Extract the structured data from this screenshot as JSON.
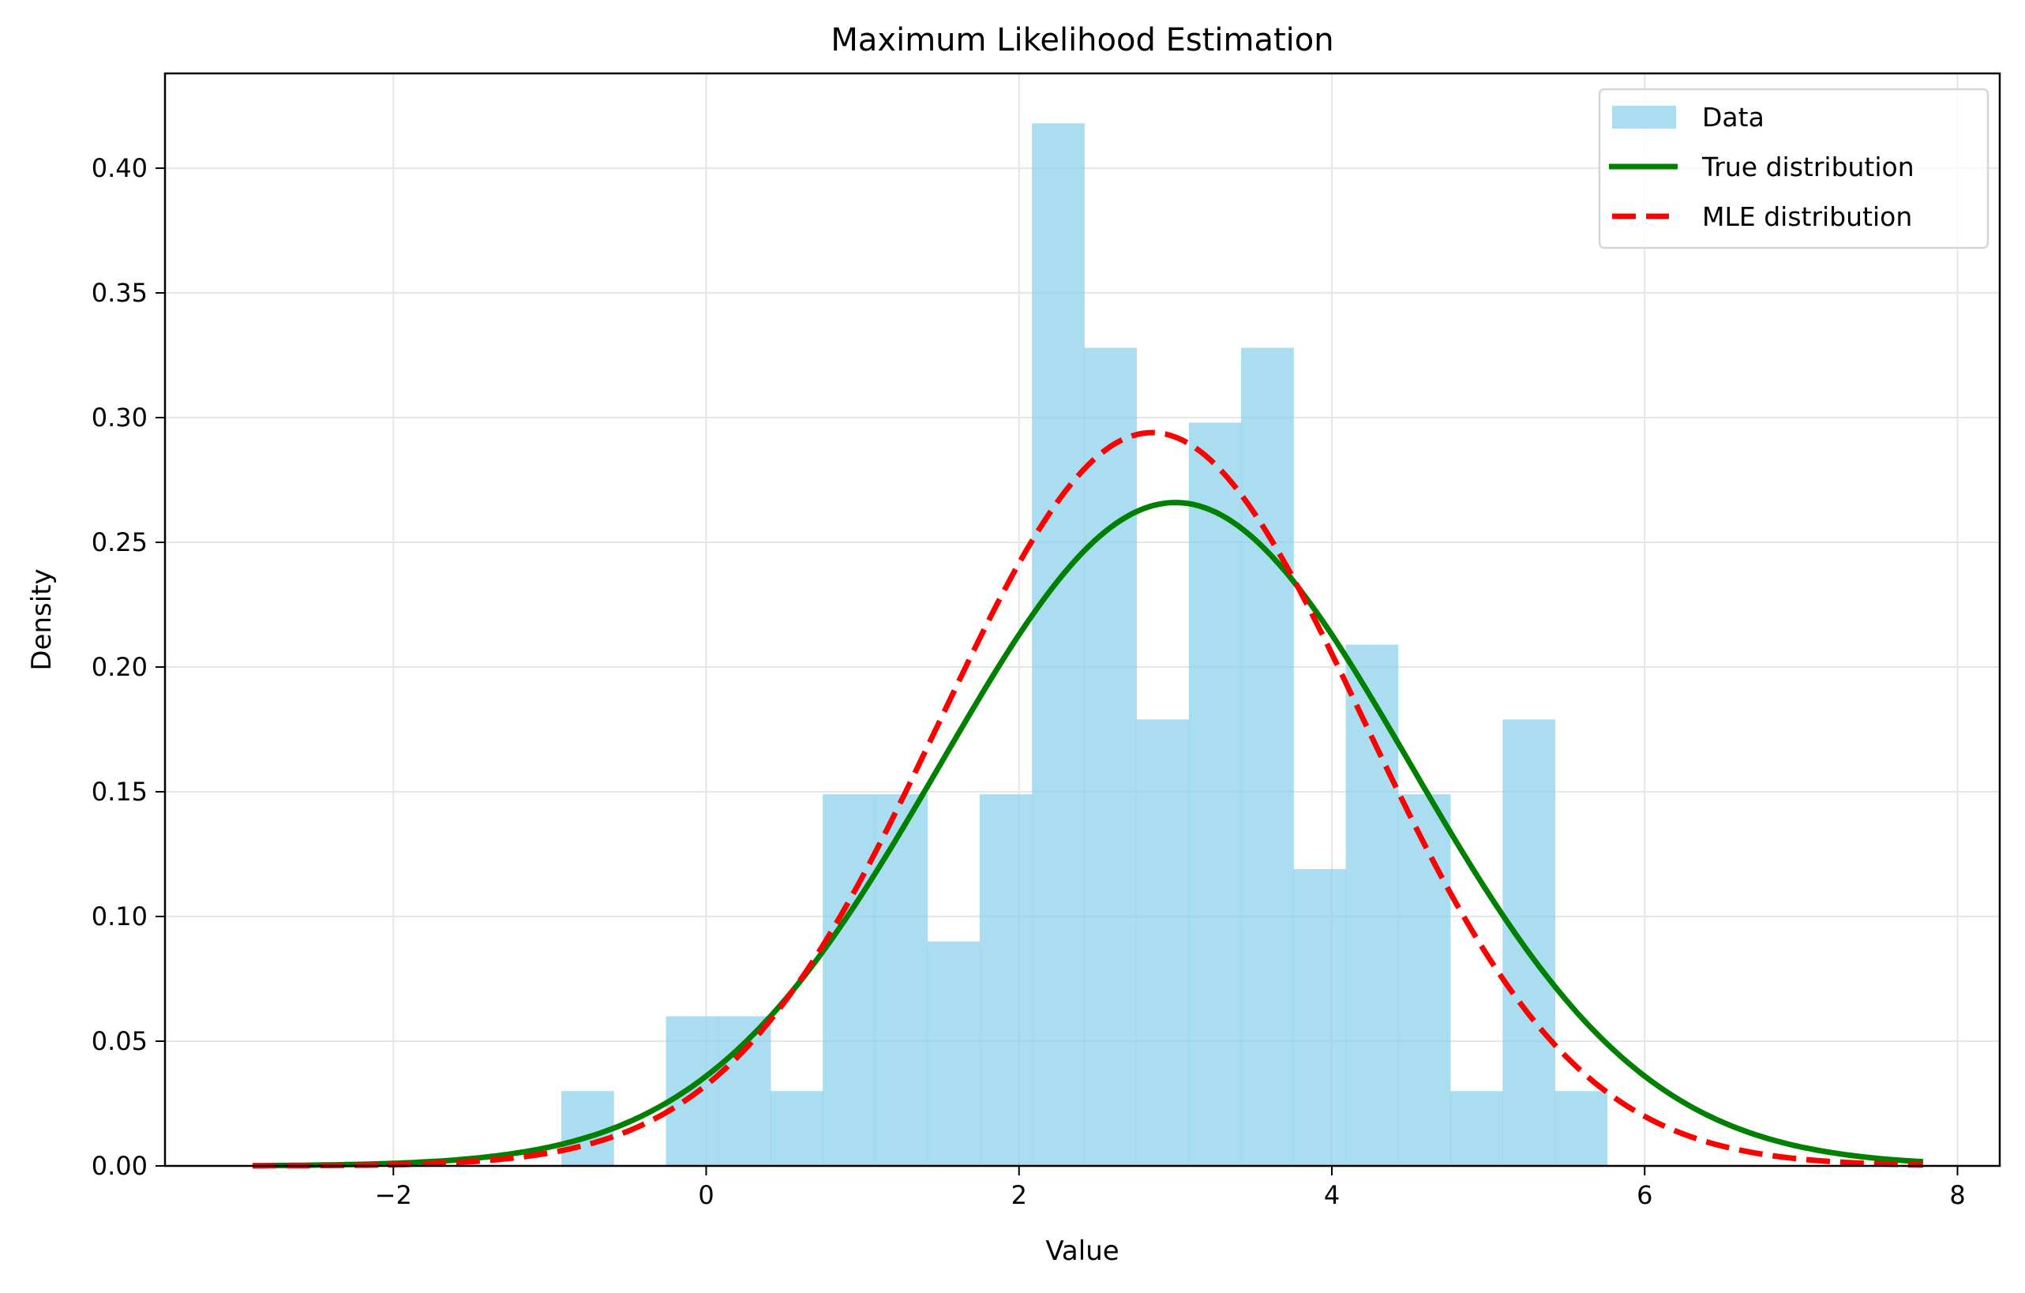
{
  "chart_data": {
    "type": "histogram+line",
    "title": "Maximum Likelihood Estimation",
    "xlabel": "Value",
    "ylabel": "Density",
    "xlim": [
      -3.46,
      8.27
    ],
    "ylim": [
      0,
      0.438
    ],
    "xticks": [
      -2,
      0,
      2,
      4,
      6,
      8
    ],
    "xtick_labels": [
      "−2",
      "0",
      "2",
      "4",
      "6",
      "8"
    ],
    "yticks": [
      0,
      0.05,
      0.1,
      0.15,
      0.2,
      0.25,
      0.3,
      0.35,
      0.4
    ],
    "ytick_labels": [
      "0.00",
      "0.05",
      "0.10",
      "0.15",
      "0.20",
      "0.25",
      "0.30",
      "0.35",
      "0.40"
    ],
    "grid": true,
    "legend_position": "top-right",
    "histogram": {
      "name": "Data",
      "color": "#87ceeb",
      "bin_start": -0.926,
      "bin_width": 0.3343,
      "densities": [
        0.03,
        0,
        0.06,
        0.06,
        0.03,
        0.149,
        0.149,
        0.09,
        0.149,
        0.418,
        0.328,
        0.179,
        0.298,
        0.328,
        0.119,
        0.209,
        0.149,
        0.03,
        0.179,
        0.03
      ]
    },
    "series": [
      {
        "name": "True distribution",
        "color": "#008000",
        "style": "solid",
        "mean": 3.0,
        "std": 1.5,
        "x_range": [
          -2.9,
          7.78
        ]
      },
      {
        "name": "MLE distribution",
        "color": "#ff0000",
        "style": "dashed",
        "mean": 2.85,
        "std": 1.357,
        "x_range": [
          -2.9,
          7.78
        ]
      }
    ]
  }
}
